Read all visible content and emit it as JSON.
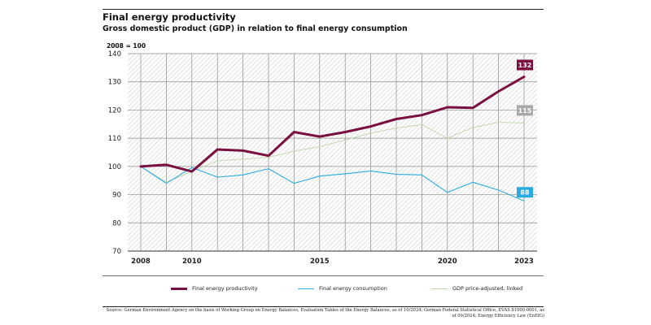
{
  "title": "Final energy productivity",
  "subtitle": "Gross domestic product (GDP) in relation to final energy consumption",
  "index_note": "2008 = 100",
  "chart_data": {
    "type": "line",
    "x": [
      2008,
      2009,
      2010,
      2011,
      2012,
      2013,
      2014,
      2015,
      2016,
      2017,
      2018,
      2019,
      2020,
      2021,
      2022,
      2023
    ],
    "xlim": [
      2008,
      2023
    ],
    "ylim": [
      70,
      140
    ],
    "yticks": [
      70,
      80,
      90,
      100,
      110,
      120,
      130,
      140
    ],
    "xtick_labels": [
      {
        "x": 2008,
        "label": "2008"
      },
      {
        "x": 2010,
        "label": "2010"
      },
      {
        "x": 2015,
        "label": "2015"
      },
      {
        "x": 2020,
        "label": "2020"
      },
      {
        "x": 2023,
        "label": "2023"
      }
    ],
    "grid": true,
    "series": [
      {
        "name": "Final energy productivity",
        "color": "#7a1040",
        "values": [
          100,
          100.6,
          98.2,
          106,
          105.6,
          103.8,
          112.2,
          110.6,
          112.2,
          114.2,
          116.8,
          118.2,
          121,
          120.8,
          126.6,
          131.8
        ],
        "end_label": "132"
      },
      {
        "name": "Final energy consumption",
        "color": "#29abe2",
        "values": [
          100,
          94,
          99.6,
          96.2,
          97,
          99.2,
          94,
          96.6,
          97.4,
          98.4,
          97.2,
          97,
          90.8,
          94.4,
          91.6,
          87.8
        ],
        "end_label": "88"
      },
      {
        "name": "GDP price-adjusted, linked",
        "color": "#bcd7a8",
        "values": [
          100,
          94.4,
          98.2,
          102,
          102.6,
          103.2,
          105.4,
          107,
          109.4,
          111.8,
          113.6,
          114.8,
          110,
          113.8,
          115.7,
          115.4
        ],
        "end_label": "115"
      }
    ],
    "end_label_colors": [
      "#7a1040",
      "#29abe2",
      "#a8a8a8"
    ]
  },
  "source": "Source: German Environment Agency on the basis of Working Group on Energy Balances, Evaluation Tables of the Energy Balances, as of 10/2024; German Federal Statistical Office, EVAS 81000-0001, as of 09/2024; Energy Efficiency Law (EnEfG)"
}
